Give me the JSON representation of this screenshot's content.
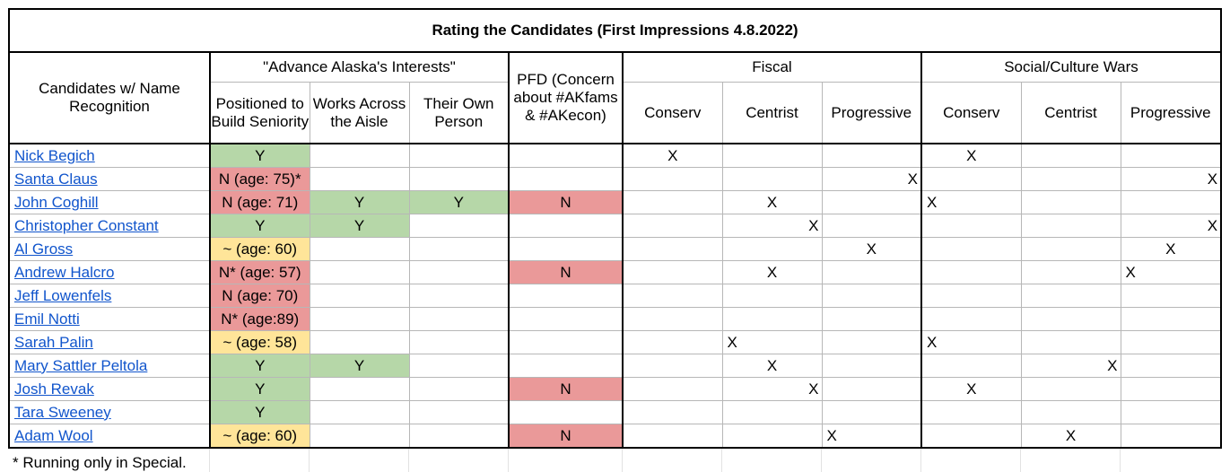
{
  "title": "Rating the Candidates (First Impressions 4.8.2022)",
  "headers": {
    "candidates": "Candidates w/ Name Recognition",
    "group_alaska": "\"Advance Alaska's Interests\"",
    "sub_seniority": "Positioned to Build Seniority",
    "sub_aisle": "Works Across the Aisle",
    "sub_own": "Their Own Person",
    "pfd": "PFD (Concern about #AKfams & #AKecon)",
    "group_fiscal": "Fiscal",
    "group_social": "Social/Culture Wars",
    "conserv": "Conserv",
    "centrist": "Centrist",
    "progressive": "Progressive"
  },
  "rows": [
    {
      "name": "Nick Begich",
      "seniority": "Y",
      "seniority_color": "green",
      "aisle": "",
      "own": "",
      "pfd": "",
      "fiscal": "conserv",
      "fiscal_mark": "X",
      "social": "conserv",
      "social_mark": "X"
    },
    {
      "name": "Santa Claus",
      "seniority": "N (age: 75)*",
      "seniority_color": "red",
      "aisle": "",
      "own": "",
      "pfd": "",
      "fiscal": "progressive",
      "fiscal_mark": "X",
      "social": "progressive",
      "social_mark": "X"
    },
    {
      "name": "John Coghill",
      "seniority": "N (age: 71)",
      "seniority_color": "red",
      "aisle": "Y",
      "own": "Y",
      "pfd": "N",
      "fiscal": "centrist",
      "fiscal_mark": "X",
      "social": "conserv",
      "social_mark": "X"
    },
    {
      "name": "Christopher Constant",
      "seniority": "Y",
      "seniority_color": "green",
      "aisle": "Y",
      "own": "",
      "pfd": "",
      "fiscal": "centrist",
      "fiscal_mark": "X",
      "social": "progressive",
      "social_mark": "X"
    },
    {
      "name": "Al Gross",
      "seniority": "~ (age: 60)",
      "seniority_color": "yellow",
      "aisle": "",
      "own": "",
      "pfd": "",
      "fiscal": "progressive",
      "fiscal_mark": "X",
      "social": "progressive",
      "social_mark": "X"
    },
    {
      "name": "Andrew Halcro",
      "seniority": "N* (age: 57)",
      "seniority_color": "red",
      "aisle": "",
      "own": "",
      "pfd": "N",
      "fiscal": "centrist",
      "fiscal_mark": "X",
      "social": "progressive",
      "social_mark": "X"
    },
    {
      "name": "Jeff Lowenfels",
      "seniority": "N (age: 70)",
      "seniority_color": "red",
      "aisle": "",
      "own": "",
      "pfd": "",
      "fiscal": "",
      "fiscal_mark": "",
      "social": "",
      "social_mark": ""
    },
    {
      "name": "Emil Notti",
      "seniority": "N* (age:89)",
      "seniority_color": "red",
      "aisle": "",
      "own": "",
      "pfd": "",
      "fiscal": "",
      "fiscal_mark": "",
      "social": "",
      "social_mark": ""
    },
    {
      "name": "Sarah Palin",
      "seniority": "~ (age: 58)",
      "seniority_color": "yellow",
      "aisle": "",
      "own": "",
      "pfd": "",
      "fiscal": "centrist",
      "fiscal_mark": "X",
      "social": "conserv",
      "social_mark": "X"
    },
    {
      "name": "Mary Sattler Peltola",
      "seniority": "Y",
      "seniority_color": "green",
      "aisle": "Y",
      "own": "",
      "pfd": "",
      "fiscal": "centrist",
      "fiscal_mark": "X",
      "social": "centrist",
      "social_mark": "X"
    },
    {
      "name": "Josh Revak",
      "seniority": "Y",
      "seniority_color": "green",
      "aisle": "",
      "own": "",
      "pfd": "N",
      "fiscal": "centrist",
      "fiscal_mark": "X",
      "social": "conserv",
      "social_mark": "X"
    },
    {
      "name": "Tara Sweeney",
      "seniority": "Y",
      "seniority_color": "green",
      "aisle": "",
      "own": "",
      "pfd": "",
      "fiscal": "",
      "fiscal_mark": "",
      "social": "",
      "social_mark": ""
    },
    {
      "name": "Adam Wool",
      "seniority": "~ (age: 60)",
      "seniority_color": "yellow",
      "aisle": "",
      "own": "",
      "pfd": "N",
      "fiscal": "progressive",
      "fiscal_mark": "X",
      "social": "centrist",
      "social_mark": "X"
    }
  ],
  "footnote": "* Running only in Special.",
  "colors": {
    "green": "#b6d7a8",
    "red": "#ea9999",
    "yellow": "#ffe599",
    "link": "#1155cc"
  }
}
